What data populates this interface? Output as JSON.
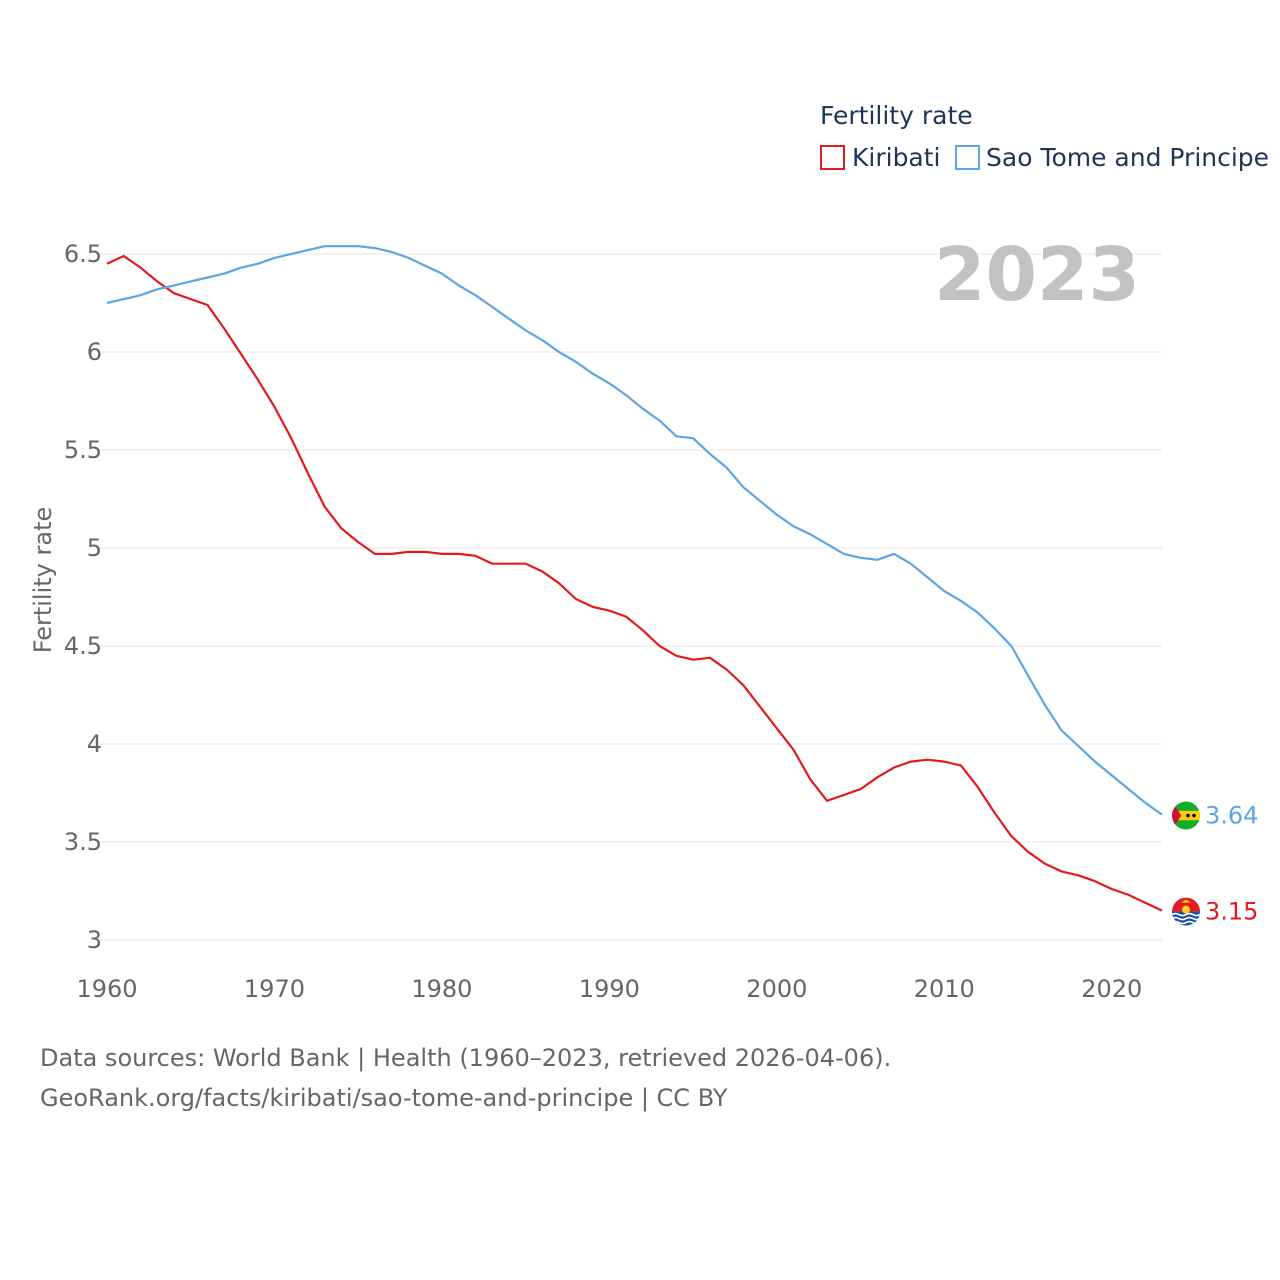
{
  "chart_data": {
    "type": "line",
    "title": "Fertility rate",
    "year_label": "2023",
    "ylabel": "Fertility rate",
    "xlabel": "",
    "xlim": [
      1960,
      2023
    ],
    "ylim": [
      3,
      6.5
    ],
    "x_ticks": [
      1960,
      1970,
      1980,
      1990,
      2000,
      2010,
      2020
    ],
    "y_ticks": [
      3,
      3.5,
      4,
      4.5,
      5,
      5.5,
      6,
      6.5
    ],
    "y_tick_labels": [
      "3",
      "3.5",
      "4",
      "4.5",
      "5",
      "5.5",
      "6",
      "6.5"
    ],
    "legend": {
      "title": "Fertility rate",
      "placement": "top-right"
    },
    "x": [
      1960,
      1961,
      1962,
      1963,
      1964,
      1965,
      1966,
      1967,
      1968,
      1969,
      1970,
      1971,
      1972,
      1973,
      1974,
      1975,
      1976,
      1977,
      1978,
      1979,
      1980,
      1981,
      1982,
      1983,
      1984,
      1985,
      1986,
      1987,
      1988,
      1989,
      1990,
      1991,
      1992,
      1993,
      1994,
      1995,
      1996,
      1997,
      1998,
      1999,
      2000,
      2001,
      2002,
      2003,
      2004,
      2005,
      2006,
      2007,
      2008,
      2009,
      2010,
      2011,
      2012,
      2013,
      2014,
      2015,
      2016,
      2017,
      2018,
      2019,
      2020,
      2021,
      2022,
      2023
    ],
    "series": [
      {
        "name": "Kiribati",
        "color": "#e31a1c",
        "end_label": "3.15",
        "flag": "kiribati-flag",
        "values": [
          6.45,
          6.49,
          6.43,
          6.36,
          6.3,
          6.27,
          6.24,
          6.12,
          5.99,
          5.86,
          5.72,
          5.56,
          5.38,
          5.21,
          5.1,
          5.03,
          4.97,
          4.97,
          4.98,
          4.98,
          4.97,
          4.97,
          4.96,
          4.92,
          4.92,
          4.92,
          4.88,
          4.82,
          4.74,
          4.7,
          4.68,
          4.65,
          4.58,
          4.5,
          4.45,
          4.43,
          4.44,
          4.38,
          4.3,
          4.19,
          4.08,
          3.97,
          3.82,
          3.71,
          3.74,
          3.77,
          3.83,
          3.88,
          3.91,
          3.92,
          3.91,
          3.89,
          3.78,
          3.65,
          3.53,
          3.45,
          3.39,
          3.35,
          3.33,
          3.3,
          3.26,
          3.23,
          3.19,
          3.15
        ]
      },
      {
        "name": "Sao Tome and Principe",
        "color": "#5ca5e5",
        "end_label": "3.64",
        "flag": "sao-tome-and-principe-flag",
        "values": [
          6.25,
          6.27,
          6.29,
          6.32,
          6.34,
          6.36,
          6.38,
          6.4,
          6.43,
          6.45,
          6.48,
          6.5,
          6.52,
          6.54,
          6.54,
          6.54,
          6.53,
          6.51,
          6.48,
          6.44,
          6.4,
          6.34,
          6.29,
          6.23,
          6.17,
          6.11,
          6.06,
          6.0,
          5.95,
          5.89,
          5.84,
          5.78,
          5.71,
          5.65,
          5.57,
          5.56,
          5.48,
          5.41,
          5.31,
          5.24,
          5.17,
          5.11,
          5.07,
          5.02,
          4.97,
          4.95,
          4.94,
          4.97,
          4.92,
          4.85,
          4.78,
          4.73,
          4.67,
          4.59,
          4.5,
          4.35,
          4.2,
          4.07,
          3.99,
          3.91,
          3.84,
          3.77,
          3.7,
          3.64
        ]
      }
    ]
  },
  "footer": {
    "source_line": "Data sources: World Bank | Health (1960–2023, retrieved 2026-04-06).",
    "url_line": "GeoRank.org/facts/kiribati/sao-tome-and-principe | CC BY"
  }
}
